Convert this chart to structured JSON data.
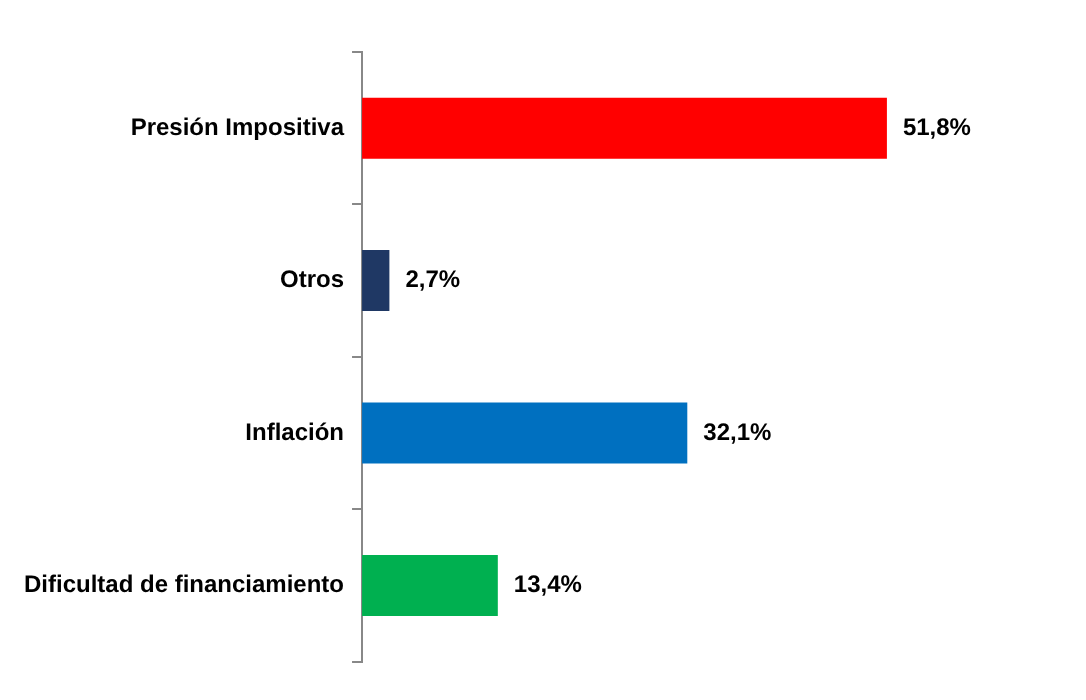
{
  "chart_data": {
    "type": "bar",
    "orientation": "horizontal",
    "categories": [
      "Presión Impositiva",
      "Otros",
      "Inflación",
      "Dificultad de financiamiento"
    ],
    "values": [
      51.8,
      2.7,
      32.1,
      13.4
    ],
    "colors": [
      "#ff0000",
      "#1f3864",
      "#0070c0",
      "#00b050"
    ],
    "value_labels": [
      "51,8%",
      "2,7%",
      "32,1%",
      "13,4%"
    ],
    "tick_labels": "y",
    "grid": false,
    "legend": false
  }
}
